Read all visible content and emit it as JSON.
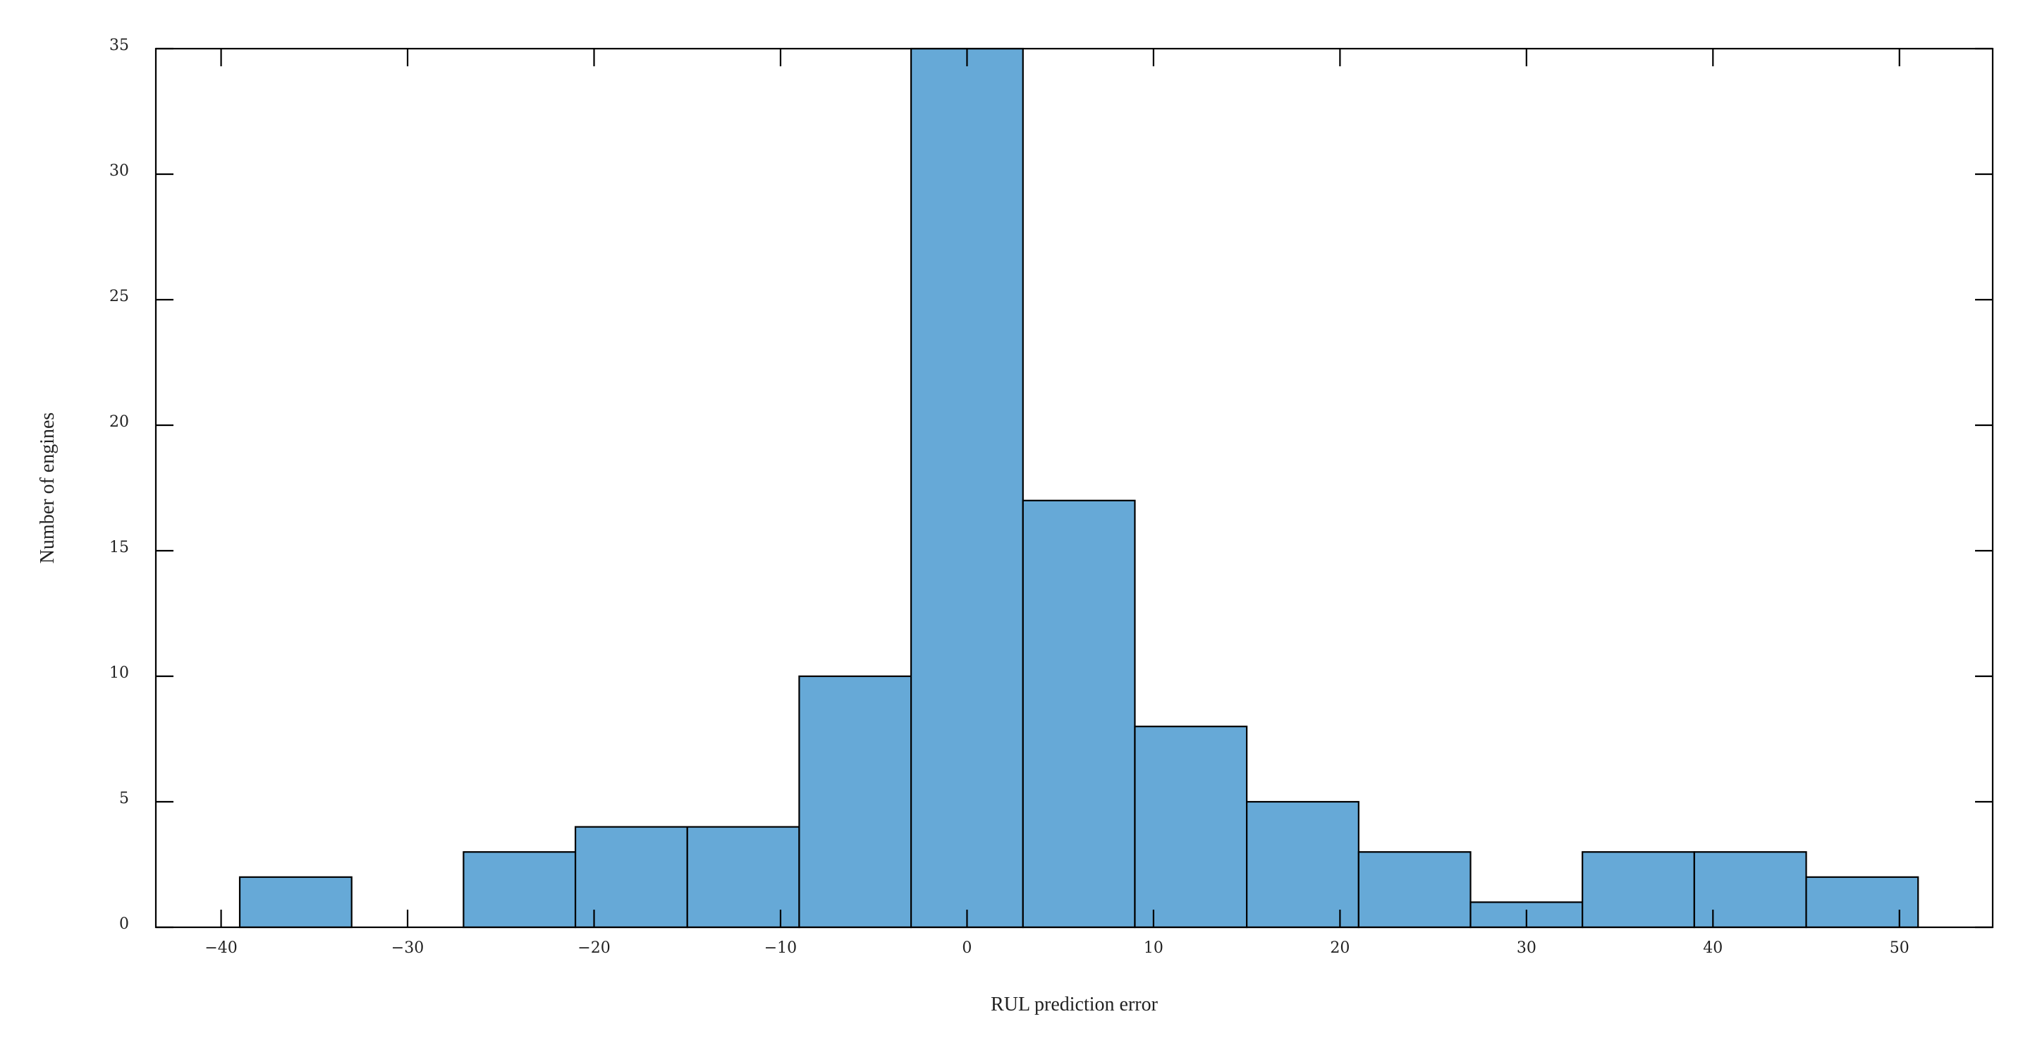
{
  "chart_data": {
    "type": "bar",
    "histogram": true,
    "xlabel": "RUL prediction error",
    "ylabel": "Number of engines",
    "xlim": [
      -43.5,
      55
    ],
    "ylim": [
      0,
      35
    ],
    "xticks": [
      -40,
      -30,
      -20,
      -10,
      0,
      10,
      20,
      30,
      40,
      50
    ],
    "xtick_labels": [
      "−40",
      "−30",
      "−20",
      "−10",
      "0",
      "10",
      "20",
      "30",
      "40",
      "50"
    ],
    "yticks": [
      0,
      5,
      10,
      15,
      20,
      25,
      30,
      35
    ],
    "ytick_labels": [
      "0",
      "5",
      "10",
      "15",
      "20",
      "25",
      "30",
      "35"
    ],
    "bins": [
      {
        "x0": -39,
        "x1": -33,
        "count": 2
      },
      {
        "x0": -33,
        "x1": -27,
        "count": 0
      },
      {
        "x0": -27,
        "x1": -21,
        "count": 3
      },
      {
        "x0": -21,
        "x1": -15,
        "count": 4
      },
      {
        "x0": -15,
        "x1": -9,
        "count": 4
      },
      {
        "x0": -9,
        "x1": -3,
        "count": 10
      },
      {
        "x0": -3,
        "x1": 3,
        "count": 35
      },
      {
        "x0": 3,
        "x1": 9,
        "count": 17
      },
      {
        "x0": 9,
        "x1": 15,
        "count": 8
      },
      {
        "x0": 15,
        "x1": 21,
        "count": 5
      },
      {
        "x0": 21,
        "x1": 27,
        "count": 3
      },
      {
        "x0": 27,
        "x1": 33,
        "count": 1
      },
      {
        "x0": 33,
        "x1": 39,
        "count": 3
      },
      {
        "x0": 39,
        "x1": 45,
        "count": 3
      },
      {
        "x0": 45,
        "x1": 51,
        "count": 2
      }
    ],
    "bar_color": "#66a9d7",
    "grid": false,
    "legend": "none"
  }
}
